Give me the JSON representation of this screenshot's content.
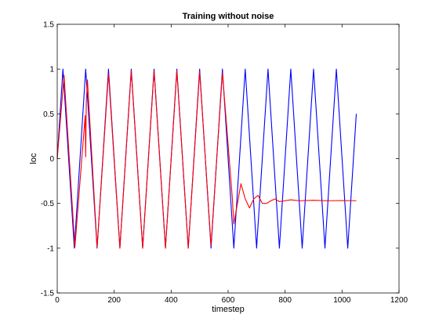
{
  "chart_data": {
    "type": "line",
    "title": "Training without noise",
    "xlabel": "timestep",
    "ylabel": "loc",
    "xlim": [
      0,
      1200
    ],
    "ylim": [
      -1.5,
      1.5
    ],
    "xticks": [
      0,
      200,
      400,
      600,
      800,
      1000,
      1200
    ],
    "yticks": [
      -1.5,
      -1,
      -0.5,
      0,
      0.5,
      1,
      1.5
    ],
    "xtick_labels": [
      "0",
      "200",
      "400",
      "600",
      "800",
      "1000",
      "1200"
    ],
    "ytick_labels": [
      "-1.5",
      "-1",
      "-0.5",
      "0",
      "0.5",
      "1",
      "1.5"
    ],
    "grid": false,
    "series": [
      {
        "color": "#0000ff",
        "x": [
          0,
          20,
          60,
          100,
          140,
          180,
          220,
          260,
          300,
          340,
          380,
          420,
          460,
          500,
          540,
          580,
          620,
          660,
          700,
          740,
          780,
          820,
          860,
          900,
          940,
          980,
          1020,
          1050
        ],
        "y": [
          0,
          1,
          -1,
          1,
          -1,
          1,
          -1,
          1,
          -1,
          1,
          -1,
          1,
          -1,
          1,
          -1,
          1,
          -1,
          1,
          -1,
          1,
          -1,
          1,
          -1,
          1,
          -1,
          1,
          -1,
          0.5
        ]
      },
      {
        "color": "#ff0000",
        "x": [
          0,
          24,
          62,
          98,
          100,
          102,
          106,
          140,
          180,
          220,
          260,
          300,
          340,
          380,
          420,
          460,
          500,
          540,
          580,
          615,
          620,
          630,
          645,
          660,
          675,
          690,
          705,
          720,
          735,
          750,
          765,
          780,
          800,
          820,
          850,
          900,
          950,
          1000,
          1050
        ],
        "y": [
          0,
          0.93,
          -0.99,
          0.48,
          0.02,
          0.62,
          0.88,
          -0.99,
          0.95,
          -1.0,
          0.98,
          -1.0,
          0.98,
          -1.0,
          0.98,
          -1.0,
          0.97,
          -0.97,
          0.96,
          -0.45,
          -0.73,
          -0.55,
          -0.28,
          -0.45,
          -0.55,
          -0.45,
          -0.41,
          -0.5,
          -0.5,
          -0.47,
          -0.45,
          -0.48,
          -0.47,
          -0.46,
          -0.47,
          -0.465,
          -0.47,
          -0.468,
          -0.47
        ]
      }
    ]
  }
}
